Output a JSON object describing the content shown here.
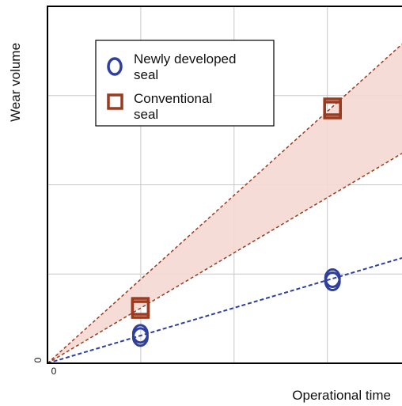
{
  "chart_data": {
    "type": "scatter",
    "title": "",
    "xlabel": "Operational time",
    "ylabel": "Wear volume",
    "x_ticks": [
      "0"
    ],
    "y_ticks": [
      "0"
    ],
    "xlim": [
      0,
      1
    ],
    "ylim": [
      0,
      1
    ],
    "grid": true,
    "legend_position": "top-left",
    "series": [
      {
        "name": "Newly developed seal",
        "marker": "circle",
        "color": "#2e3f9e",
        "points": [
          {
            "x": 0.262,
            "y": 0.078
          },
          {
            "x": 0.804,
            "y": 0.234
          }
        ],
        "trend_line": {
          "slope": 0.295,
          "style": "dashed",
          "color": "#2e3f9e"
        }
      },
      {
        "name": "Conventional seal",
        "marker": "square",
        "color": "#9a3a1e",
        "points": [
          {
            "x": 0.262,
            "y": 0.155
          },
          {
            "x": 0.804,
            "y": 0.714
          }
        ],
        "band": {
          "upper_slope": 0.894,
          "lower_slope": 0.588,
          "style": "dashed",
          "fill": "#f5d8d2",
          "color": "#9a3a1e"
        }
      }
    ]
  }
}
